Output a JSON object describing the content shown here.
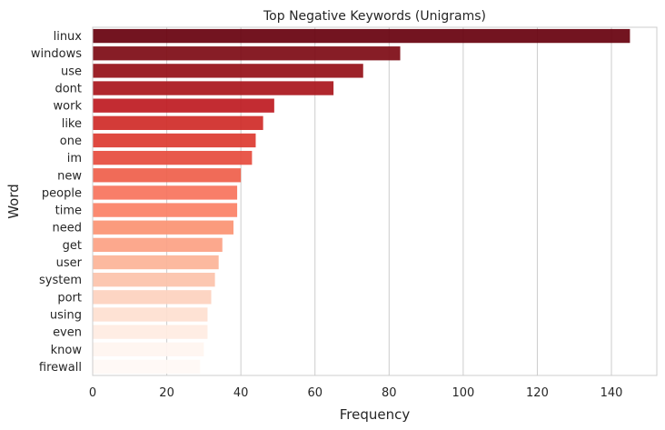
{
  "chart_data": {
    "type": "bar",
    "orientation": "horizontal",
    "title": "Top Negative Keywords (Unigrams)",
    "xlabel": "Frequency",
    "ylabel": "Word",
    "categories": [
      "linux",
      "windows",
      "use",
      "dont",
      "work",
      "like",
      "one",
      "im",
      "new",
      "people",
      "time",
      "need",
      "get",
      "user",
      "system",
      "port",
      "using",
      "even",
      "know",
      "firewall"
    ],
    "values": [
      145,
      83,
      73,
      65,
      49,
      46,
      44,
      43,
      40,
      39,
      39,
      38,
      35,
      34,
      33,
      32,
      31,
      31,
      30,
      29
    ],
    "xlim": [
      0,
      152.25
    ],
    "xticks": [
      0,
      20,
      40,
      60,
      80,
      100,
      120,
      140
    ],
    "grid": "x",
    "palette": "Reds_r",
    "colors": [
      "#67000d",
      "#7d0a13",
      "#950f17",
      "#a9151b",
      "#be1a21",
      "#cf2a27",
      "#dc3a30",
      "#e64b3d",
      "#ef5e4a",
      "#f7735c",
      "#fb8065",
      "#fb9272",
      "#fca183",
      "#fcb397",
      "#fcc2aa",
      "#fdd1be",
      "#fedfd0",
      "#ffece2",
      "#fff5f0",
      "#fff8f5"
    ]
  }
}
